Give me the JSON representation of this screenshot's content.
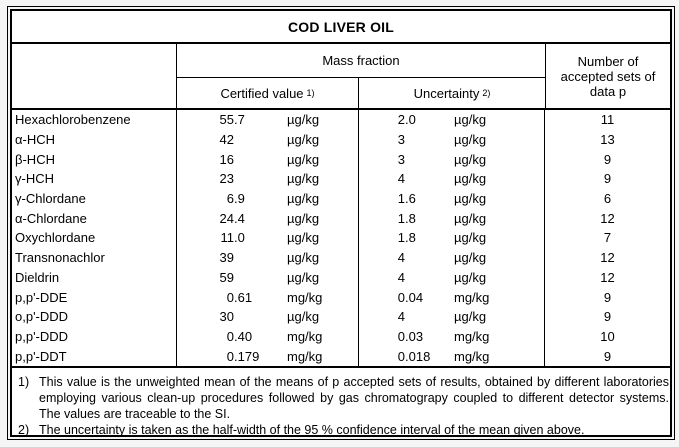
{
  "title": "COD LIVER OIL",
  "header": {
    "mass_fraction": "Mass fraction",
    "certified_value": "Certified value",
    "certified_value_sup": "1)",
    "uncertainty": "Uncertainty",
    "uncertainty_sup": "2)",
    "accepted_sets": "Number of accepted sets of data p"
  },
  "table": {
    "rows": [
      {
        "name": "Hexachlorobenzene",
        "certified_value": "55.7",
        "certified_unit": "µg/kg",
        "uncertainty": "2.0",
        "uncertainty_unit": "µg/kg",
        "p": "11"
      },
      {
        "name": "α-HCH",
        "certified_value": "42",
        "certified_unit": "µg/kg",
        "uncertainty": "3",
        "uncertainty_unit": "µg/kg",
        "p": "13"
      },
      {
        "name": "β-HCH",
        "certified_value": "16",
        "certified_unit": "µg/kg",
        "uncertainty": "3",
        "uncertainty_unit": "µg/kg",
        "p": "9"
      },
      {
        "name": "γ-HCH",
        "certified_value": "23",
        "certified_unit": "µg/kg",
        "uncertainty": "4",
        "uncertainty_unit": "µg/kg",
        "p": "9"
      },
      {
        "name": "γ-Chlordane",
        "certified_value": "6.9",
        "certified_unit": "µg/kg",
        "uncertainty": "1.6",
        "uncertainty_unit": "µg/kg",
        "p": "6"
      },
      {
        "name": "α-Chlordane",
        "certified_value": "24.4",
        "certified_unit": "µg/kg",
        "uncertainty": "1.8",
        "uncertainty_unit": "µg/kg",
        "p": "12"
      },
      {
        "name": "Oxychlordane",
        "certified_value": "11.0",
        "certified_unit": "µg/kg",
        "uncertainty": "1.8",
        "uncertainty_unit": "µg/kg",
        "p": "7"
      },
      {
        "name": "Transnonachlor",
        "certified_value": "39",
        "certified_unit": "µg/kg",
        "uncertainty": "4",
        "uncertainty_unit": "µg/kg",
        "p": "12"
      },
      {
        "name": "Dieldrin",
        "certified_value": "59",
        "certified_unit": "µg/kg",
        "uncertainty": "4",
        "uncertainty_unit": "µg/kg",
        "p": "12"
      },
      {
        "name": "p,p'-DDE",
        "certified_value": "0.61",
        "certified_unit": "mg/kg",
        "uncertainty": "0.04",
        "uncertainty_unit": "mg/kg",
        "p": "9"
      },
      {
        "name": "o,p'-DDD",
        "certified_value": "30",
        "certified_unit": "µg/kg",
        "uncertainty": "4",
        "uncertainty_unit": "µg/kg",
        "p": "9"
      },
      {
        "name": "p,p'-DDD",
        "certified_value": "0.40",
        "certified_unit": "mg/kg",
        "uncertainty": "0.03",
        "uncertainty_unit": "mg/kg",
        "p": "10"
      },
      {
        "name": "p,p'-DDT",
        "certified_value": "0.179",
        "certified_unit": "mg/kg",
        "uncertainty": "0.018",
        "uncertainty_unit": "mg/kg",
        "p": "9"
      }
    ]
  },
  "footnotes": [
    {
      "marker": "1)",
      "text": "This value is the unweighted mean of the means of p accepted sets of results, obtained by different laboratories employing various clean-up procedures followed by gas chromatograpy coupled to different detector systems. The values are traceable to the SI."
    },
    {
      "marker": "2)",
      "text": "The uncertainty is taken as the half-width of the 95 % confidence interval of the mean given above."
    }
  ],
  "colors": {
    "page_bg": "#f5f5f5",
    "table_bg": "#ffffff",
    "line": "#000000",
    "text": "#000000"
  }
}
